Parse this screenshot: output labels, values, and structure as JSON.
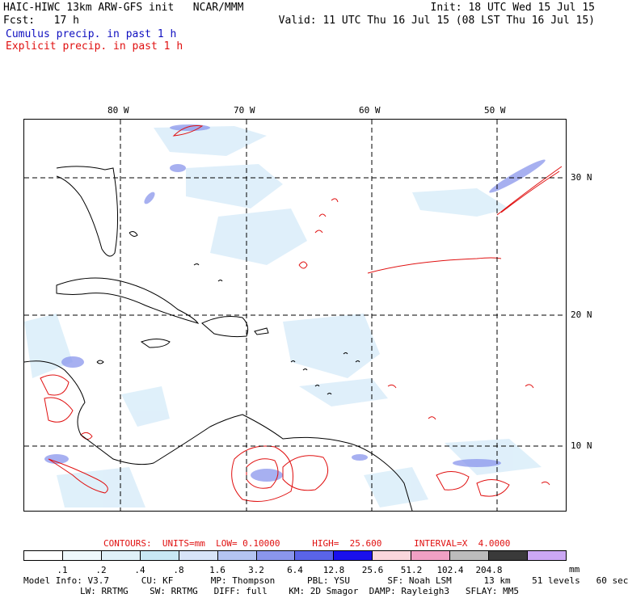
{
  "header": {
    "line1_left": "HAIC-HIWC 13km ARW-GFS init   NCAR/MMM",
    "line1_right": "Init: 18 UTC Wed 15 Jul 15",
    "line2_left": "Fcst:   17 h",
    "line2_right": "Valid: 11 UTC Thu 16 Jul 15 (08 LST Thu 16 Jul 15)",
    "legend_cumulus": "Cumulus precip. in past 1 h",
    "legend_explicit": "Explicit precip. in past 1 h"
  },
  "map": {
    "lon_labels": [
      "80 W",
      "70 W",
      "60 W",
      "50 W"
    ],
    "lat_labels": [
      "30 N",
      "20 N",
      "10 N"
    ]
  },
  "contours": {
    "label": "CONTOURS:  UNITS=mm  LOW= 0.10000      HIGH=  25.600      INTERVAL=X  4.0000"
  },
  "colorbar": {
    "colors": [
      "#ffffff",
      "#eef8fc",
      "#dff0f8",
      "#c8e8f4",
      "#d8e4f8",
      "#b4c4f2",
      "#8a96ec",
      "#5a64e8",
      "#1a10ec",
      "#fad6dc",
      "#f0a0c4",
      "#bcbcbc",
      "#3a3a3a",
      "#cca8f4"
    ],
    "labels": [
      ".1",
      ".2",
      ".4",
      ".8",
      "1.6",
      "3.2",
      "6.4",
      "12.8",
      "25.6",
      "51.2",
      "102.4",
      "204.8"
    ],
    "unit": "mm"
  },
  "footer": {
    "line1": "Model Info: V3.7      CU: KF       MP: Thompson      PBL: YSU       SF: Noah LSM      13 km    51 levels   60 sec",
    "line2": "LW: RRTMG    SW: RRTMG   DIFF: full    KM: 2D Smagor  DAMP: Rayleigh3   SFLAY: MM5"
  }
}
